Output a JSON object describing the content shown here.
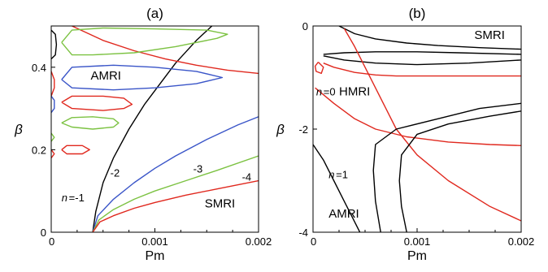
{
  "chart_data": [
    {
      "type": "line",
      "panel_label": "(a)",
      "xlabel": "Pm",
      "ylabel": "β",
      "xlim": [
        0,
        0.002
      ],
      "ylim": [
        0,
        0.5
      ],
      "x_ticks": [
        "0",
        "0.001",
        "0.002"
      ],
      "x_tick_values": [
        0,
        0.001,
        0.002
      ],
      "y_ticks": [
        "0",
        "0.2",
        "0.4"
      ],
      "y_tick_values": [
        0,
        0.2,
        0.4
      ],
      "annotations": [
        {
          "text": "AMRI",
          "x": 0.00038,
          "y": 0.37
        },
        {
          "text": "SMRI",
          "x": 0.00148,
          "y": 0.06
        },
        {
          "text": "-2",
          "x": 0.00057,
          "y": 0.135
        },
        {
          "text": "-3",
          "x": 0.00137,
          "y": 0.145
        },
        {
          "text": "-4",
          "x": 0.00184,
          "y": 0.125
        },
        {
          "text": "n",
          "x": 0.0001,
          "y": 0.075
        },
        {
          "text": "=-1",
          "x": 0.00017,
          "y": 0.075
        }
      ],
      "series": [
        {
          "color": "#000000",
          "points": [
            [
              0.0004,
              0
            ],
            [
              0.00043,
              0.05
            ],
            [
              0.0005,
              0.12
            ],
            [
              0.0006,
              0.18
            ],
            [
              0.00075,
              0.25
            ],
            [
              0.0009,
              0.31
            ],
            [
              0.00105,
              0.36
            ],
            [
              0.0012,
              0.41
            ],
            [
              0.0014,
              0.465
            ],
            [
              0.00155,
              0.5
            ]
          ]
        },
        {
          "color": "#3a55c8",
          "points": [
            [
              0.0004,
              0
            ],
            [
              0.00045,
              0.04
            ],
            [
              0.0006,
              0.08
            ],
            [
              0.0008,
              0.12
            ],
            [
              0.001,
              0.155
            ],
            [
              0.0012,
              0.185
            ],
            [
              0.0015,
              0.225
            ],
            [
              0.0018,
              0.26
            ],
            [
              0.002,
              0.28
            ]
          ]
        },
        {
          "color": "#7cc242",
          "points": [
            [
              0.0004,
              0
            ],
            [
              0.00046,
              0.03
            ],
            [
              0.0006,
              0.055
            ],
            [
              0.0008,
              0.08
            ],
            [
              0.001,
              0.1
            ],
            [
              0.0013,
              0.125
            ],
            [
              0.0016,
              0.15
            ],
            [
              0.002,
              0.185
            ]
          ]
        },
        {
          "color": "#e0281e",
          "points": [
            [
              0.0004,
              0
            ],
            [
              0.00047,
              0.025
            ],
            [
              0.0006,
              0.04
            ],
            [
              0.0008,
              0.058
            ],
            [
              0.001,
              0.072
            ],
            [
              0.0013,
              0.09
            ],
            [
              0.0016,
              0.105
            ],
            [
              0.002,
              0.125
            ]
          ]
        },
        {
          "color": "#e0281e",
          "points": [
            [
              0.0002,
              0.5
            ],
            [
              0.0005,
              0.465
            ],
            [
              0.0008,
              0.44
            ],
            [
              0.0011,
              0.42
            ],
            [
              0.0014,
              0.405
            ],
            [
              0.0017,
              0.393
            ],
            [
              0.002,
              0.385
            ]
          ]
        },
        {
          "color": "#7cc242",
          "points": [
            [
              0.0001,
              0.46
            ],
            [
              0.0002,
              0.43
            ],
            [
              0.0004,
              0.43
            ],
            [
              0.0008,
              0.435
            ],
            [
              0.0012,
              0.45
            ],
            [
              0.0016,
              0.47
            ],
            [
              0.0017,
              0.48
            ],
            [
              0.0015,
              0.49
            ],
            [
              0.001,
              0.493
            ],
            [
              0.0005,
              0.495
            ],
            [
              0.0002,
              0.49
            ],
            [
              0.0001,
              0.46
            ]
          ]
        },
        {
          "color": "#3a55c8",
          "points": [
            [
              0.0001,
              0.37
            ],
            [
              0.0002,
              0.35
            ],
            [
              0.0006,
              0.345
            ],
            [
              0.001,
              0.35
            ],
            [
              0.0014,
              0.36
            ],
            [
              0.00165,
              0.375
            ],
            [
              0.0014,
              0.39
            ],
            [
              0.001,
              0.4
            ],
            [
              0.0006,
              0.405
            ],
            [
              0.0002,
              0.4
            ],
            [
              0.0001,
              0.37
            ]
          ]
        },
        {
          "color": "#e0281e",
          "points": [
            [
              0.0001,
              0.315
            ],
            [
              0.0002,
              0.3
            ],
            [
              0.0005,
              0.295
            ],
            [
              0.0007,
              0.3
            ],
            [
              0.00078,
              0.31
            ],
            [
              0.0007,
              0.325
            ],
            [
              0.0005,
              0.33
            ],
            [
              0.0002,
              0.33
            ],
            [
              0.0001,
              0.315
            ]
          ]
        },
        {
          "color": "#7cc242",
          "points": [
            [
              0.0001,
              0.265
            ],
            [
              0.0002,
              0.255
            ],
            [
              0.0004,
              0.25
            ],
            [
              0.0006,
              0.255
            ],
            [
              0.00065,
              0.265
            ],
            [
              0.0006,
              0.275
            ],
            [
              0.0004,
              0.28
            ],
            [
              0.0002,
              0.278
            ],
            [
              0.0001,
              0.265
            ]
          ]
        },
        {
          "color": "#e0281e",
          "points": [
            [
              0.0001,
              0.2
            ],
            [
              0.00015,
              0.19
            ],
            [
              0.0003,
              0.19
            ],
            [
              0.00037,
              0.2
            ],
            [
              0.0003,
              0.21
            ],
            [
              0.00015,
              0.21
            ],
            [
              0.0001,
              0.2
            ]
          ]
        },
        {
          "color": "#000000",
          "points": [
            [
              0.0,
              0.49
            ],
            [
              4e-05,
              0.48
            ],
            [
              5e-05,
              0.455
            ],
            [
              4e-05,
              0.43
            ],
            [
              0.0,
              0.42
            ]
          ]
        },
        {
          "color": "#e0281e",
          "points": [
            [
              0.0,
              0.39
            ],
            [
              3e-05,
              0.37
            ],
            [
              3e-05,
              0.35
            ],
            [
              0.0,
              0.33
            ]
          ]
        },
        {
          "color": "#3a55c8",
          "points": [
            [
              0.0,
              0.33
            ],
            [
              3e-05,
              0.32
            ],
            [
              3e-05,
              0.3
            ],
            [
              0.0,
              0.29
            ]
          ]
        },
        {
          "color": "#7cc242",
          "points": [
            [
              0.0,
              0.24
            ],
            [
              3e-05,
              0.23
            ],
            [
              0.0,
              0.22
            ]
          ]
        },
        {
          "color": "#e0281e",
          "points": [
            [
              0.0,
              0.2
            ],
            [
              3e-05,
              0.19
            ],
            [
              0.0,
              0.18
            ]
          ]
        }
      ]
    },
    {
      "type": "line",
      "panel_label": "(b)",
      "xlabel": "Pm",
      "ylabel": "β",
      "xlim": [
        0,
        0.002
      ],
      "ylim": [
        -4,
        0
      ],
      "x_ticks": [
        "0",
        "0.001",
        "0.002"
      ],
      "x_tick_values": [
        0,
        0.001,
        0.002
      ],
      "y_ticks": [
        "0",
        "-2",
        "-4"
      ],
      "y_tick_values": [
        0,
        -2,
        -4
      ],
      "annotations": [
        {
          "text": "SMRI",
          "x": 0.00155,
          "y": -0.25
        },
        {
          "text": "HMRI",
          "x": 0.00025,
          "y": -1.35
        },
        {
          "text": "n",
          "x": 3e-05,
          "y": -1.35
        },
        {
          "text": "=0",
          "x": 0.0001,
          "y": -1.35
        },
        {
          "text": "n",
          "x": 0.00015,
          "y": -2.95
        },
        {
          "text": "=1",
          "x": 0.00022,
          "y": -2.95
        },
        {
          "text": "AMRI",
          "x": 0.00015,
          "y": -3.72
        }
      ],
      "series": [
        {
          "color": "#000000",
          "points": [
            [
              0.00025,
              0
            ],
            [
              0.0004,
              -0.15
            ],
            [
              0.0006,
              -0.25
            ],
            [
              0.0009,
              -0.33
            ],
            [
              0.0012,
              -0.38
            ],
            [
              0.0016,
              -0.42
            ],
            [
              0.002,
              -0.45
            ]
          ]
        },
        {
          "color": "#000000",
          "points": [
            [
              0.0001,
              -0.55
            ],
            [
              0.0003,
              -0.52
            ],
            [
              0.0006,
              -0.5
            ],
            [
              0.001,
              -0.5
            ],
            [
              0.0014,
              -0.52
            ],
            [
              0.002,
              -0.55
            ]
          ]
        },
        {
          "color": "#000000",
          "points": [
            [
              0.0001,
              -0.58
            ],
            [
              0.0003,
              -0.66
            ],
            [
              0.0006,
              -0.72
            ],
            [
              0.001,
              -0.75
            ],
            [
              0.0015,
              -0.72
            ],
            [
              0.002,
              -0.66
            ]
          ]
        },
        {
          "color": "#e0281e",
          "points": [
            [
              0.0001,
              -0.72
            ],
            [
              0.0002,
              -0.8
            ],
            [
              0.0004,
              -0.9
            ],
            [
              0.0006,
              -0.95
            ],
            [
              0.0008,
              -0.97
            ],
            [
              0.0012,
              -0.97
            ],
            [
              0.002,
              -0.97
            ]
          ]
        },
        {
          "color": "#e0281e",
          "points": [
            [
              5e-05,
              -0.7
            ],
            [
              0.0001,
              -0.8
            ],
            [
              8e-05,
              -0.92
            ],
            [
              3e-05,
              -0.88
            ],
            [
              2e-05,
              -0.78
            ],
            [
              5e-05,
              -0.7
            ]
          ]
        },
        {
          "color": "#e0281e",
          "points": [
            [
              0.0003,
              -0.05
            ],
            [
              0.0004,
              -0.4
            ],
            [
              0.0005,
              -0.8
            ],
            [
              0.0006,
              -1.2
            ],
            [
              0.0007,
              -1.6
            ],
            [
              0.0008,
              -2.0
            ],
            [
              0.001,
              -2.5
            ],
            [
              0.0013,
              -3.0
            ],
            [
              0.0017,
              -3.5
            ],
            [
              0.002,
              -3.78
            ]
          ]
        },
        {
          "color": "#e0281e",
          "points": [
            [
              2e-05,
              -1.2
            ],
            [
              0.0002,
              -1.5
            ],
            [
              0.0004,
              -1.8
            ],
            [
              0.0006,
              -2.0
            ],
            [
              0.0009,
              -2.15
            ],
            [
              0.0013,
              -2.25
            ],
            [
              0.0017,
              -2.3
            ],
            [
              0.002,
              -2.32
            ]
          ]
        },
        {
          "color": "#000000",
          "points": [
            [
              0.002,
              -1.5
            ],
            [
              0.0016,
              -1.6
            ],
            [
              0.0012,
              -1.8
            ],
            [
              0.0008,
              -2.0
            ],
            [
              0.0006,
              -2.3
            ],
            [
              0.00058,
              -2.8
            ],
            [
              0.0006,
              -3.4
            ],
            [
              0.00065,
              -4
            ]
          ]
        },
        {
          "color": "#000000",
          "points": [
            [
              0.002,
              -1.65
            ],
            [
              0.0017,
              -1.75
            ],
            [
              0.0013,
              -1.9
            ],
            [
              0.001,
              -2.1
            ],
            [
              0.00085,
              -2.5
            ],
            [
              0.00083,
              -3.0
            ],
            [
              0.00085,
              -3.5
            ],
            [
              0.0009,
              -4
            ]
          ]
        },
        {
          "color": "#000000",
          "points": [
            [
              0.0,
              -2.3
            ],
            [
              0.0001,
              -2.6
            ],
            [
              0.0002,
              -3.0
            ],
            [
              0.0003,
              -3.4
            ],
            [
              0.00045,
              -4
            ]
          ]
        }
      ]
    }
  ]
}
